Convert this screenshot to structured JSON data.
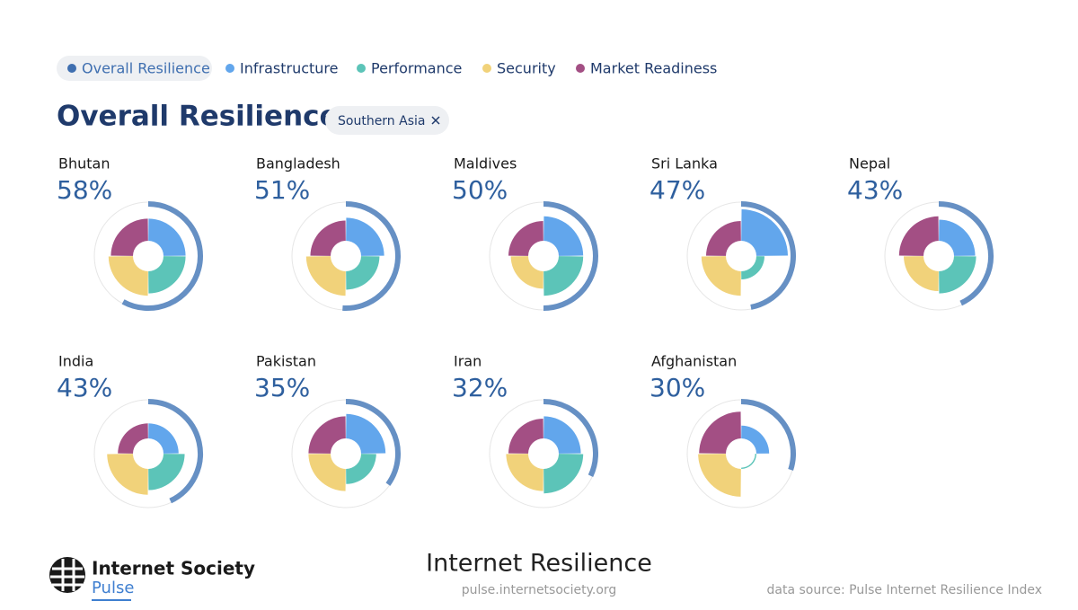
{
  "legend": [
    {
      "label": "Overall Resilience",
      "color": "#3f6fb0"
    },
    {
      "label": "Infrastructure",
      "color": "#62a6ec"
    },
    {
      "label": "Performance",
      "color": "#5cc4b8"
    },
    {
      "label": "Security",
      "color": "#f1d27a"
    },
    {
      "label": "Market Readiness",
      "color": "#a34f84"
    }
  ],
  "header": {
    "title": "Overall Resilience",
    "filter": "Southern Asia"
  },
  "countries": [
    {
      "name": "Bhutan",
      "overall": 58,
      "overall_label": "58%",
      "pillars": [
        80,
        80,
        85,
        80
      ]
    },
    {
      "name": "Bangladesh",
      "overall": 51,
      "overall_label": "51%",
      "pillars": [
        82,
        72,
        85,
        76
      ]
    },
    {
      "name": "Maldives",
      "overall": 50,
      "overall_label": "50%",
      "pillars": [
        85,
        85,
        70,
        75
      ]
    },
    {
      "name": "Sri Lanka",
      "overall": 47,
      "overall_label": "47%",
      "pillars": [
        100,
        50,
        85,
        75
      ]
    },
    {
      "name": "Nepal",
      "overall": 43,
      "overall_label": "43%",
      "pillars": [
        78,
        80,
        75,
        85
      ]
    },
    {
      "name": "India",
      "overall": 43,
      "overall_label": "43%",
      "pillars": [
        65,
        78,
        88,
        65
      ]
    },
    {
      "name": "Pakistan",
      "overall": 35,
      "overall_label": "35%",
      "pillars": [
        85,
        65,
        80,
        80
      ]
    },
    {
      "name": "Iran",
      "overall": 32,
      "overall_label": "32%",
      "pillars": [
        80,
        85,
        80,
        75
      ]
    },
    {
      "name": "Afghanistan",
      "overall": 30,
      "overall_label": "30%",
      "pillars": [
        60,
        30,
        92,
        90
      ]
    }
  ],
  "footer": {
    "brand": "Internet Society",
    "product": "Pulse",
    "title": "Internet Resilience",
    "url": "pulse.internetsociety.org",
    "source": "data source: Pulse Internet Resilience Index"
  }
}
